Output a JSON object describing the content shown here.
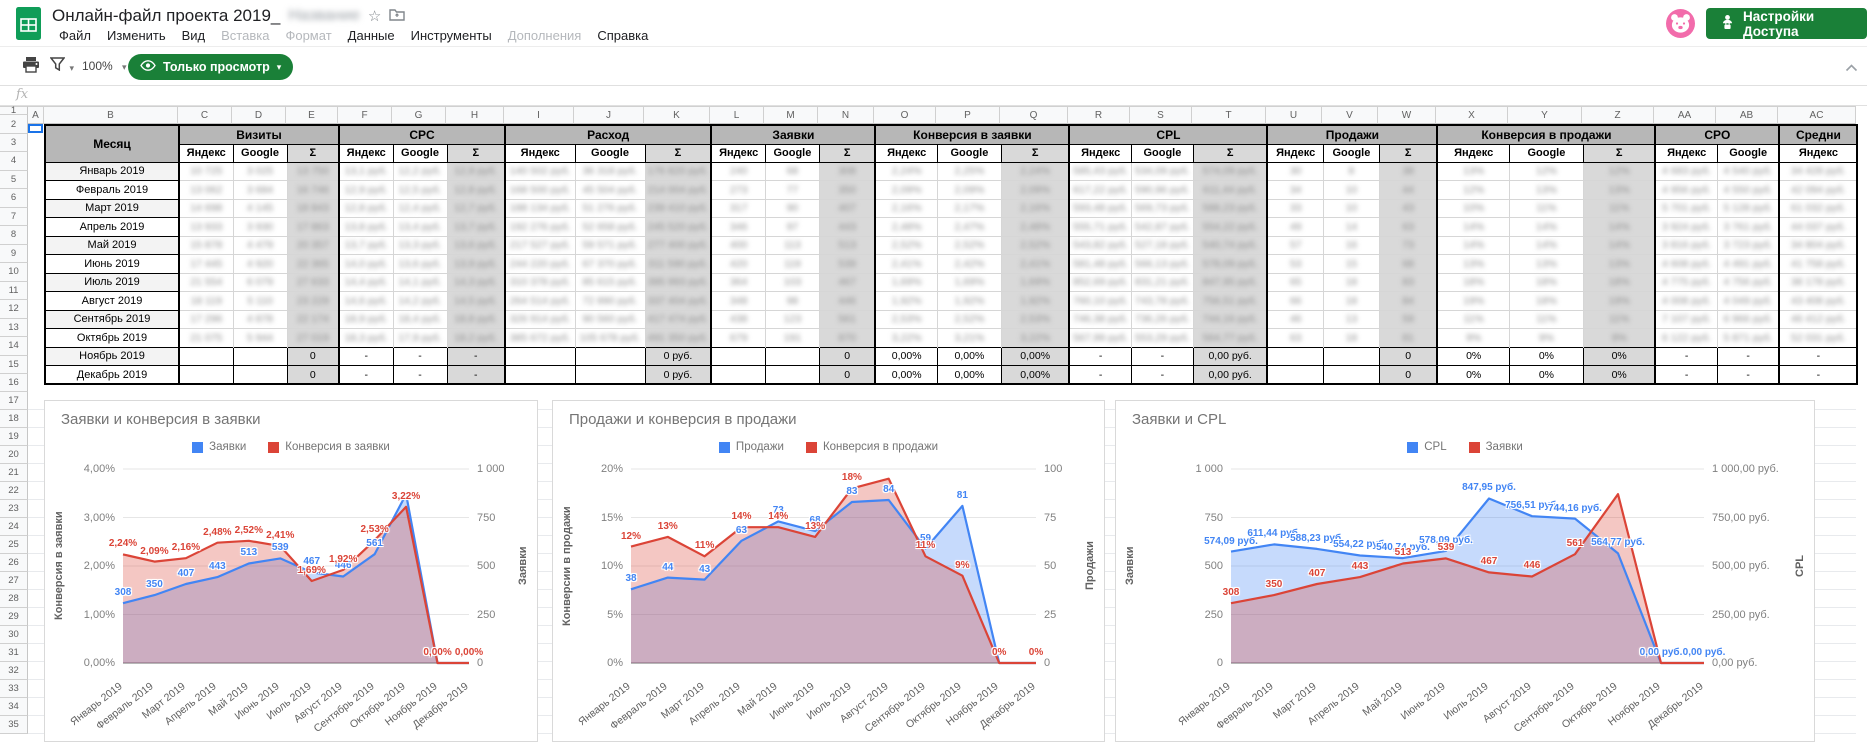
{
  "header": {
    "title": "Онлайн-файл проекта 2019_",
    "title_suffix_blurred": "Название",
    "star_glyph": "☆",
    "menus": [
      {
        "id": "file",
        "label": "Файл",
        "enabled": true
      },
      {
        "id": "edit",
        "label": "Изменить",
        "enabled": true
      },
      {
        "id": "view",
        "label": "Вид",
        "enabled": true
      },
      {
        "id": "insert",
        "label": "Вставка",
        "enabled": false
      },
      {
        "id": "format",
        "label": "Формат",
        "enabled": false
      },
      {
        "id": "data",
        "label": "Данные",
        "enabled": true
      },
      {
        "id": "tools",
        "label": "Инструменты",
        "enabled": true
      },
      {
        "id": "addons",
        "label": "Дополнения",
        "enabled": false
      },
      {
        "id": "help",
        "label": "Справка",
        "enabled": true
      }
    ],
    "share_button_label": "Настройки Доступа"
  },
  "toolbar": {
    "zoom_value": "100%",
    "view_only_label": "Только просмотр",
    "caret_glyph": "▾"
  },
  "formula_bar": {
    "fx_label": "fx",
    "value": ""
  },
  "sheet": {
    "column_letters": [
      "A",
      "B",
      "C",
      "D",
      "E",
      "F",
      "G",
      "H",
      "I",
      "J",
      "K",
      "L",
      "M",
      "N",
      "O",
      "P",
      "Q",
      "R",
      "S",
      "T",
      "U",
      "V",
      "W",
      "X",
      "Y",
      "Z",
      "AA",
      "AB",
      "AC"
    ],
    "row_count": 35
  },
  "table": {
    "month_header": "Месяц",
    "groups": [
      {
        "label": "Визиты",
        "cols": [
          "Яндекс",
          "Google",
          "Σ"
        ]
      },
      {
        "label": "CPC",
        "cols": [
          "Яндекс",
          "Google",
          "Σ"
        ]
      },
      {
        "label": "Расход",
        "cols": [
          "Яндекс",
          "Google",
          "Σ"
        ]
      },
      {
        "label": "Заявки",
        "cols": [
          "Яндекс",
          "Google",
          "Σ"
        ]
      },
      {
        "label": "Конверсия в заявки",
        "cols": [
          "Яндекс",
          "Google",
          "Σ"
        ]
      },
      {
        "label": "CPL",
        "cols": [
          "Яндекс",
          "Google",
          "Σ"
        ]
      },
      {
        "label": "Продажи",
        "cols": [
          "Яндекс",
          "Google",
          "Σ"
        ]
      },
      {
        "label": "Конверсия в продажи",
        "cols": [
          "Яндекс",
          "Google",
          "Σ"
        ]
      },
      {
        "label": "CPO",
        "cols": [
          "Яндекс",
          "Google"
        ]
      },
      {
        "label": "Средни",
        "cols": [
          "Яндекс"
        ]
      }
    ],
    "rows": [
      {
        "month": "Январь 2019",
        "blurred": true,
        "cells": [
          "10 725",
          "3 025",
          "13 750",
          "13,1 руб.",
          "12,2 руб.",
          "12,9 руб.",
          "140 502 руб.",
          "36 318 руб.",
          "176 820 руб.",
          "240",
          "68",
          "308",
          "2,24%",
          "2,25%",
          "2,24%",
          "585,43 руб.",
          "534,09 руб.",
          "574,09 руб.",
          "30",
          "8",
          "38",
          "13%",
          "12%",
          "12%",
          "4 683 руб.",
          "4 540 руб.",
          "34 428 руб."
        ]
      },
      {
        "month": "Февраль 2019",
        "blurred": true,
        "cells": [
          "13 062",
          "3 684",
          "16 746",
          "12,9 руб.",
          "12,5 руб.",
          "12,8 руб.",
          "168 500 руб.",
          "45 504 руб.",
          "214 004 руб.",
          "273",
          "77",
          "350",
          "2,09%",
          "2,09%",
          "2,09%",
          "617,22 руб.",
          "590,96 руб.",
          "611,44 руб.",
          "34",
          "10",
          "44",
          "12%",
          "13%",
          "13%",
          "4 956 руб.",
          "4 550 руб.",
          "42 094 руб."
        ]
      },
      {
        "month": "Март 2019",
        "blurred": true,
        "cells": [
          "14 698",
          "4 145",
          "18 843",
          "12,8 руб.",
          "12,4 руб.",
          "12,7 руб.",
          "188 134 руб.",
          "51 276 руб.",
          "239 410 руб.",
          "317",
          "90",
          "407",
          "2,16%",
          "2,17%",
          "2,16%",
          "593,48 руб.",
          "569,73 руб.",
          "588,23 руб.",
          "33",
          "10",
          "43",
          "10%",
          "11%",
          "11%",
          "5 701 руб.",
          "5 128 руб.",
          "61 032 руб."
        ]
      },
      {
        "month": "Апрель 2019",
        "blurred": true,
        "cells": [
          "13 933",
          "3 930",
          "17 863",
          "13,8 руб.",
          "13,4 руб.",
          "13,7 руб.",
          "192 276 руб.",
          "52 658 руб.",
          "245 520 руб.",
          "346",
          "97",
          "443",
          "2,48%",
          "2,47%",
          "2,48%",
          "555,71 руб.",
          "542,87 руб.",
          "554,22 руб.",
          "49",
          "14",
          "63",
          "14%",
          "14%",
          "14%",
          "3 924 руб.",
          "3 761 руб.",
          "44 037 руб."
        ]
      },
      {
        "month": "Май 2019",
        "blurred": true,
        "cells": [
          "15 878",
          "4 479",
          "20 357",
          "13,7 руб.",
          "13,3 руб.",
          "13,6 руб.",
          "217 527 руб.",
          "59 571 руб.",
          "277 400 руб.",
          "400",
          "113",
          "513",
          "2,52%",
          "2,52%",
          "2,52%",
          "543,82 руб.",
          "527,18 руб.",
          "540,74 руб.",
          "57",
          "16",
          "73",
          "14%",
          "14%",
          "14%",
          "3 816 руб.",
          "3 723 руб.",
          "34 804 руб."
        ]
      },
      {
        "month": "Июнь 2019",
        "blurred": true,
        "cells": [
          "17 445",
          "4 920",
          "22 365",
          "14,0 руб.",
          "13,6 руб.",
          "13,9 руб.",
          "244 220 руб.",
          "67 370 руб.",
          "311 590 руб.",
          "420",
          "119",
          "539",
          "2,41%",
          "2,42%",
          "2,41%",
          "581,48 руб.",
          "566,13 руб.",
          "578,09 руб.",
          "53",
          "15",
          "68",
          "13%",
          "13%",
          "13%",
          "4 608 руб.",
          "4 491 руб.",
          "41 758 руб."
        ]
      },
      {
        "month": "Июль 2019",
        "blurred": true,
        "cells": [
          "21 554",
          "6 079",
          "27 633",
          "14,4 руб.",
          "14,1 руб.",
          "14,3 руб.",
          "310 378 руб.",
          "85 615 руб.",
          "395 993 руб.",
          "364",
          "103",
          "467",
          "1,69%",
          "1,69%",
          "1,69%",
          "852,69 руб.",
          "831,21 руб.",
          "847,95 руб.",
          "65",
          "18",
          "83",
          "18%",
          "18%",
          "18%",
          "4 775 руб.",
          "4 756 руб.",
          "38 178 руб."
        ]
      },
      {
        "month": "Август 2019",
        "blurred": true,
        "cells": [
          "18 119",
          "5 110",
          "23 229",
          "14,6 руб.",
          "14,2 руб.",
          "14,5 руб.",
          "264 514 руб.",
          "72 890 руб.",
          "337 404 руб.",
          "348",
          "98",
          "446",
          "1,92%",
          "1,92%",
          "1,92%",
          "760,10 руб.",
          "743,78 руб.",
          "756,51 руб.",
          "66",
          "18",
          "84",
          "19%",
          "18%",
          "19%",
          "4 008 руб.",
          "4 049 руб.",
          "43 408 руб."
        ]
      },
      {
        "month": "Сентябрь 2019",
        "blurred": true,
        "cells": [
          "17 296",
          "4 878",
          "22 174",
          "18,9 руб.",
          "18,4 руб.",
          "18,8 руб.",
          "326 914 руб.",
          "90 560 руб.",
          "417 474 руб.",
          "438",
          "123",
          "561",
          "2,53%",
          "2,52%",
          "2,53%",
          "746,38 руб.",
          "736,26 руб.",
          "744,16 руб.",
          "46",
          "13",
          "59",
          "11%",
          "11%",
          "11%",
          "7 107 руб.",
          "6 966 руб.",
          "46 412 руб."
        ]
      },
      {
        "month": "Октябрь 2019",
        "blurred": true,
        "cells": [
          "21 075",
          "5 944",
          "27 019",
          "18,3 руб.",
          "17,9 руб.",
          "18,2 руб.",
          "385 672 руб.",
          "105 678 руб.",
          "491 350 руб.",
          "679",
          "191",
          "870",
          "3,22%",
          "3,21%",
          "3,22%",
          "567,99 руб.",
          "553,29 руб.",
          "564,77 руб.",
          "63",
          "18",
          "81",
          "9%",
          "9%",
          "9%",
          "6 122 руб.",
          "5 871 руб.",
          "52 031 руб."
        ]
      },
      {
        "month": "Ноябрь 2019",
        "blurred": false,
        "cells": [
          "",
          "",
          "0",
          "-",
          "-",
          "-",
          "",
          "",
          "0 руб.",
          "",
          "",
          "0",
          "0,00%",
          "0,00%",
          "0,00%",
          "-",
          "-",
          "0,00 руб.",
          "",
          "",
          "0",
          "0%",
          "0%",
          "0%",
          "-",
          "-",
          "-"
        ]
      },
      {
        "month": "Декабрь 2019",
        "blurred": false,
        "cells": [
          "",
          "",
          "0",
          "-",
          "-",
          "-",
          "",
          "",
          "0 руб.",
          "",
          "",
          "0",
          "0,00%",
          "0,00%",
          "0,00%",
          "-",
          "-",
          "0,00 руб.",
          "",
          "",
          "0",
          "0%",
          "0%",
          "0%",
          "-",
          "-",
          "-"
        ]
      }
    ]
  },
  "chart_data": [
    {
      "type": "area",
      "title": "Заявки и конверсия в заявки",
      "categories": [
        "Январь 2019",
        "Февраль 2019",
        "Март 2019",
        "Апрель 2019",
        "Май 2019",
        "Июнь 2019",
        "Июль 2019",
        "Август 2019",
        "Сентябрь 2019",
        "Октябрь 2019",
        "Ноябрь 2019",
        "Декабрь 2019"
      ],
      "series": [
        {
          "name": "Заявки",
          "color": "#4285f4",
          "axis": "right",
          "values": [
            308,
            350,
            407,
            443,
            513,
            539,
            467,
            446,
            561,
            870,
            0,
            0
          ],
          "labels": [
            "308",
            "350",
            "407",
            "443",
            "513",
            "539",
            "467",
            "446",
            "561",
            "",
            "",
            ""
          ]
        },
        {
          "name": "Конверсия в заявки",
          "color": "#db4437",
          "axis": "left",
          "values": [
            2.24,
            2.09,
            2.16,
            2.48,
            2.52,
            2.41,
            1.69,
            1.92,
            2.53,
            3.22,
            0,
            0
          ],
          "labels": [
            "2,24%",
            "2,09%",
            "2,16%",
            "2,48%",
            "2,52%",
            "2,41%",
            "1,69%",
            "1,92%",
            "2,53%",
            "3,22%",
            "0,00%",
            "0,00%"
          ]
        }
      ],
      "left_axis": {
        "title": "Конверсия в заявки",
        "max": 4,
        "ticks": [
          "4,00%",
          "3,00%",
          "2,00%",
          "1,00%",
          "0,00%"
        ]
      },
      "right_axis": {
        "title": "Заявки",
        "max": 1000,
        "ticks": [
          "1 000",
          "750",
          "500",
          "250",
          "0"
        ]
      },
      "grid": true,
      "legend_position": "top"
    },
    {
      "type": "area",
      "title": "Продажи и конверсия в продажи",
      "categories": [
        "Январь 2019",
        "Февраль 2019",
        "Март 2019",
        "Апрель 2019",
        "Май 2019",
        "Июнь 2019",
        "Июль 2019",
        "Август 2019",
        "Сентябрь 2019",
        "Октябрь 2019",
        "Ноябрь 2019",
        "Декабрь 2019"
      ],
      "series": [
        {
          "name": "Продажи",
          "color": "#4285f4",
          "axis": "right",
          "values": [
            38,
            44,
            43,
            63,
            73,
            68,
            83,
            84,
            59,
            81,
            0,
            0
          ],
          "labels": [
            "38",
            "44",
            "43",
            "63",
            "73",
            "68",
            "83",
            "84",
            "59",
            "81",
            "",
            ""
          ]
        },
        {
          "name": "Конверсия в продажи",
          "color": "#db4437",
          "axis": "left",
          "values": [
            12,
            13,
            11,
            14,
            14,
            13,
            18,
            19,
            11,
            9,
            0,
            0
          ],
          "labels": [
            "12%",
            "13%",
            "11%",
            "14%",
            "14%",
            "13%",
            "18%",
            "",
            "11%",
            "9%",
            "0%",
            "0%"
          ]
        }
      ],
      "left_axis": {
        "title": "Конверсии в продажи",
        "max": 20,
        "ticks": [
          "20%",
          "15%",
          "10%",
          "5%",
          "0%"
        ]
      },
      "right_axis": {
        "title": "Продажи",
        "max": 100,
        "ticks": [
          "100",
          "75",
          "50",
          "25",
          "0"
        ]
      },
      "grid": true,
      "legend_position": "top"
    },
    {
      "type": "area",
      "title": "Заявки и CPL",
      "categories": [
        "Январь 2019",
        "Февраль 2019",
        "Март 2019",
        "Апрель 2019",
        "Май 2019",
        "Июнь 2019",
        "Июль 2019",
        "Август 2019",
        "Сентябрь 2019",
        "Октябрь 2019",
        "Ноябрь 2019",
        "Декабрь 2019"
      ],
      "series": [
        {
          "name": "CPL",
          "color": "#4285f4",
          "axis": "right",
          "values": [
            574.09,
            611.44,
            588.23,
            554.22,
            540.74,
            578.09,
            847.95,
            756.51,
            744.16,
            564.77,
            0,
            0
          ],
          "labels": [
            "574,09 руб.",
            "611,44 руб.",
            "588,23 руб.",
            "554,22 руб.",
            "540,74 руб.",
            "578,09 руб.",
            "847,95 руб.",
            "756,51 руб.",
            "744,16 руб.",
            "564,77 руб.",
            "0,00 руб.",
            "0,00 руб."
          ]
        },
        {
          "name": "Заявки",
          "color": "#db4437",
          "axis": "left",
          "values": [
            308,
            350,
            407,
            443,
            513,
            539,
            467,
            446,
            561,
            870,
            0,
            0
          ],
          "labels": [
            "308",
            "350",
            "407",
            "443",
            "513",
            "539",
            "467",
            "446",
            "561",
            "",
            "",
            ""
          ]
        }
      ],
      "left_axis": {
        "title": "Заявки",
        "max": 1000,
        "ticks": [
          "1 000",
          "750",
          "500",
          "250",
          "0"
        ]
      },
      "right_axis": {
        "title": "CPL",
        "max": 1000,
        "ticks": [
          "1 000,00 руб.",
          "750,00 руб.",
          "500,00 руб.",
          "250,00 руб.",
          "0,00 руб."
        ]
      },
      "grid": true,
      "legend_position": "top"
    }
  ]
}
